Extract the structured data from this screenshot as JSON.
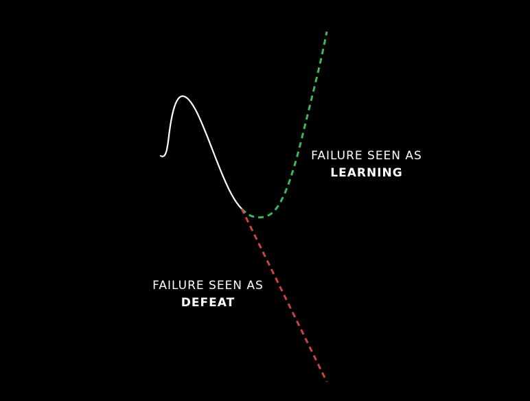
{
  "labels": {
    "learning": {
      "line1": "FAILURE SEEN AS",
      "line2": "LEARNING"
    },
    "defeat": {
      "line1": "FAILURE SEEN AS",
      "line2": "DEFEAT"
    }
  },
  "colors": {
    "background": "#000000",
    "main_curve": "#ffffff",
    "learning_path": "#3dba58",
    "defeat_path": "#c94545",
    "text": "#ffffff"
  }
}
